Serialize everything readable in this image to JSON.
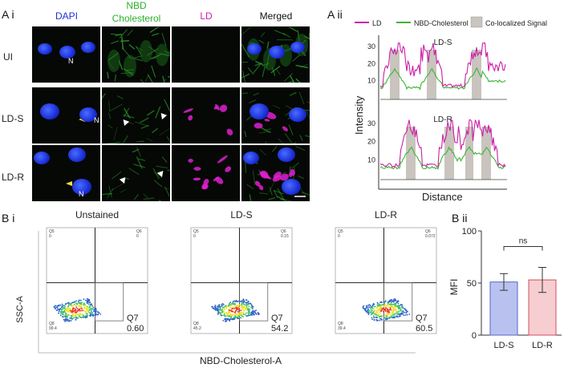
{
  "panels": {
    "ai": "A i",
    "aii": "A ii",
    "bi": "B i",
    "bii": "B ii"
  },
  "microscopy": {
    "columns": [
      "DAPI",
      "NBD\nCholesterol",
      "LD",
      "Merged"
    ],
    "rows": [
      "UI",
      "LD-S",
      "LD-R"
    ],
    "nucleus_label": "N"
  },
  "profiles": {
    "legend": [
      "LD",
      "NBD-Cholesterol",
      "Co-localized Signal"
    ],
    "ylabel": "Intensity",
    "xlabel": "Distance",
    "plots": [
      {
        "title": "LD-S",
        "yticks": [
          "10",
          "20",
          "30"
        ]
      },
      {
        "title": "LD-R",
        "yticks": [
          "10",
          "20",
          "30"
        ]
      }
    ],
    "colors": {
      "ld": "#cc1fa6",
      "nbd": "#3cb534",
      "coloc": "#c9c4be"
    }
  },
  "flow": {
    "ylabel": "SSC-A",
    "xlabel": "NBD-Cholesterol-A",
    "plots": [
      {
        "title": "Unstained",
        "q5": "Q5\n0",
        "q6": "Q6\n0",
        "q8": "Q8\n99.4",
        "q7": "Q7",
        "q7_value": "0.60"
      },
      {
        "title": "LD-S",
        "q5": "Q5\n0",
        "q6": "Q6\n0.15",
        "q8": "Q8\n45.2",
        "q7": "Q7",
        "q7_value": "54.2"
      },
      {
        "title": "LD-R",
        "q5": "Q5\n0",
        "q6": "Q6\n0.072",
        "q8": "Q8\n39.4",
        "q7": "Q7",
        "q7_value": "60.5"
      }
    ]
  },
  "chart_data": {
    "type": "bar",
    "categories": [
      "LD-S",
      "LD-R"
    ],
    "values": [
      51,
      53
    ],
    "errors": [
      8,
      12
    ],
    "ylabel": "MFI",
    "ylim": [
      0,
      100
    ],
    "yticks": [
      "0",
      "50",
      "100"
    ],
    "significance": "ns",
    "colors": [
      "#b9c2ef",
      "#f6cdd0"
    ],
    "edge_colors": [
      "#5566cc",
      "#d05060"
    ]
  }
}
